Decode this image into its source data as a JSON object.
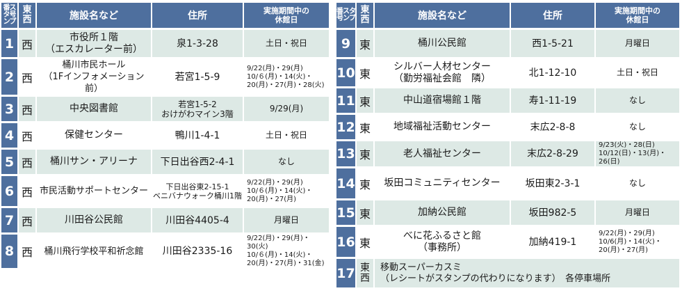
{
  "headers": {
    "stamp_no": "番スタ号ンプ",
    "east_west": "東西",
    "facility": "施設名など",
    "address": "住所",
    "closed_days": "実施期間中の\n休館日"
  },
  "left_rows": [
    {
      "num": "1",
      "ew": "西",
      "facility": "市役所１階\n（エスカレーター前）",
      "address": "泉1-3-28",
      "closed": "土日・祝日"
    },
    {
      "num": "2",
      "ew": "西",
      "facility": "桶川市民ホール\n（1Fインフォメーション前）",
      "address": "若宮1-5-9",
      "closed": "9/22(月)・29(月)\n10/６(月)・14(火)・\n20(月)・27(月)・28(火)"
    },
    {
      "num": "3",
      "ew": "西",
      "facility": "中央図書館",
      "address": "若宮1-5-2\nおけがわマイン3階",
      "closed": "9/29(月)"
    },
    {
      "num": "4",
      "ew": "西",
      "facility": "保健センター",
      "address": "鴨川1-4-1",
      "closed": "土日・祝日"
    },
    {
      "num": "5",
      "ew": "西",
      "facility": "桶川サン・アリーナ",
      "address": "下日出谷西2-4-1",
      "closed": "なし"
    },
    {
      "num": "6",
      "ew": "西",
      "facility": "市民活動サポートセンター",
      "address": "下日出谷東2-15-1\nベニバナウォーク桶川1階",
      "closed": "9/22(月)・29(月)\n10/６(月)・14(火)・\n20(月)・27(月)"
    },
    {
      "num": "7",
      "ew": "西",
      "facility": "川田谷公民館",
      "address": "川田谷4405-4",
      "closed": "月曜日"
    },
    {
      "num": "8",
      "ew": "西",
      "facility": "桶川飛行学校平和祈念館",
      "address": "川田谷2335-16",
      "closed": "9/22(月)・29(月)・30(火)\n10/６(月)・14(火)・\n20(月)・27(月)・31(金)"
    }
  ],
  "right_rows": [
    {
      "num": "9",
      "ew": "東",
      "facility": "桶川公民館",
      "address": "西1-5-21",
      "closed": "月曜日"
    },
    {
      "num": "10",
      "ew": "東",
      "facility": "シルバー人材センター\n（勤労福祉会館　隣）",
      "address": "北1-12-10",
      "closed": "土日・祝日"
    },
    {
      "num": "11",
      "ew": "東",
      "facility": "中山道宿場館１階",
      "address": "寿1-11-19",
      "closed": "なし"
    },
    {
      "num": "12",
      "ew": "東",
      "facility": "地域福祉活動センター",
      "address": "末広2-8-8",
      "closed": "なし"
    },
    {
      "num": "13",
      "ew": "東",
      "facility": "老人福祉センター",
      "address": "末広2-8-29",
      "closed": "9/23(火)・28(日)\n10/12(日)・13(月)・26(日)"
    },
    {
      "num": "14",
      "ew": "東",
      "facility": "坂田コミュニティセンター",
      "address": "坂田東2-3-1",
      "closed": "なし"
    },
    {
      "num": "15",
      "ew": "東",
      "facility": "加納公民館",
      "address": "坂田982-5",
      "closed": "月曜日"
    },
    {
      "num": "16",
      "ew": "東",
      "facility": "べに花ふるさと館\n（事務所）",
      "address": "加納419-1",
      "closed": "9/22(月)・29(月)\n10/6(月)・14(火)・\n20(月)・27(月)"
    }
  ],
  "row17": {
    "num": "17",
    "ew": "東\n西",
    "facility": "移動スーパーカスミ\n（レシートがスタンプの代わりになります）　各停車場所"
  },
  "colors": {
    "header_bg": "#4e6f9e",
    "shade_bg": "#dde9e5",
    "plain_bg": "#ffffff"
  }
}
